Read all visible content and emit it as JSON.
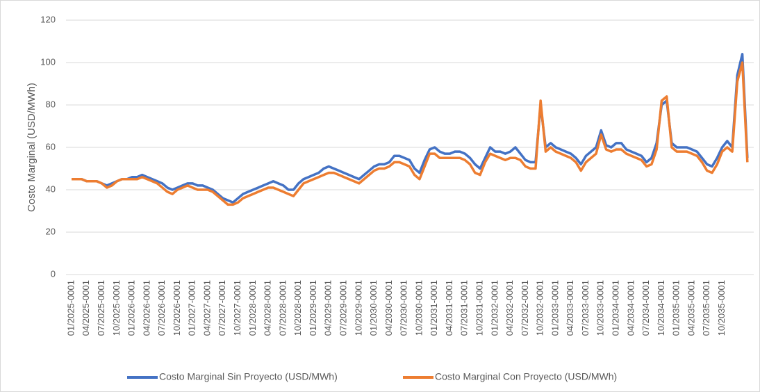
{
  "chart_data": {
    "type": "line",
    "y_label": "Costo Marginal (USD/MWh)",
    "categories": [
      "01/2025-0001",
      null,
      null,
      "04/2025-0001",
      null,
      null,
      "07/2025-0001",
      null,
      null,
      "10/2025-0001",
      null,
      null,
      "01/2026-0001",
      null,
      null,
      "04/2026-0001",
      null,
      null,
      "07/2026-0001",
      null,
      null,
      "10/2026-0001",
      null,
      null,
      "01/2027-0001",
      null,
      null,
      "04/2027-0001",
      null,
      null,
      "07/2027-0001",
      null,
      null,
      "10/2027-0001",
      null,
      null,
      "01/2028-0001",
      null,
      null,
      "04/2028-0001",
      null,
      null,
      "07/2028-0001",
      null,
      null,
      "10/2028-0001",
      null,
      null,
      "01/2029-0001",
      null,
      null,
      "04/2029-0001",
      null,
      null,
      "07/2029-0001",
      null,
      null,
      "10/2029-0001",
      null,
      null,
      "01/2030-0001",
      null,
      null,
      "04/2030-0001",
      null,
      null,
      "07/2030-0001",
      null,
      null,
      "10/2030-0001",
      null,
      null,
      "01/2031-0001",
      null,
      null,
      "04/2031-0001",
      null,
      null,
      "07/2031-0001",
      null,
      null,
      "10/2031-0001",
      null,
      null,
      "01/2032-0001",
      null,
      null,
      "04/2032-0001",
      null,
      null,
      "07/2032-0001",
      null,
      null,
      "10/2032-0001",
      null,
      null,
      "01/2033-0001",
      null,
      null,
      "04/2033-0001",
      null,
      null,
      "07/2033-0001",
      null,
      null,
      "10/2033-0001",
      null,
      null,
      "01/2034-0001",
      null,
      null,
      "04/2034-0001",
      null,
      null,
      "07/2034-0001",
      null,
      null,
      "10/2034-0001",
      null,
      null,
      "01/2035-0001",
      null,
      null,
      "04/2035-0001",
      null,
      null,
      "07/2035-0001",
      null,
      null,
      "10/2035-0001",
      null,
      null,
      null,
      null,
      null
    ],
    "series": [
      {
        "name": "Costo Marginal Sin Proyecto (USD/MWh)",
        "color": "#4472c4",
        "values": [
          45,
          45,
          45,
          44,
          44,
          44,
          43,
          42,
          43,
          44,
          45,
          45,
          46,
          46,
          47,
          46,
          45,
          44,
          43,
          41,
          40,
          41,
          42,
          43,
          43,
          42,
          42,
          41,
          40,
          38,
          36,
          35,
          34,
          36,
          38,
          39,
          40,
          41,
          42,
          43,
          44,
          43,
          42,
          40,
          40,
          43,
          45,
          46,
          47,
          48,
          50,
          51,
          50,
          49,
          48,
          47,
          46,
          45,
          47,
          49,
          51,
          52,
          52,
          53,
          56,
          56,
          55,
          54,
          50,
          48,
          54,
          59,
          60,
          58,
          57,
          57,
          58,
          58,
          57,
          55,
          52,
          50,
          55,
          60,
          58,
          58,
          57,
          58,
          60,
          57,
          54,
          53,
          53,
          80,
          60,
          62,
          60,
          59,
          58,
          57,
          55,
          52,
          56,
          58,
          60,
          68,
          61,
          60,
          62,
          62,
          59,
          58,
          57,
          56,
          53,
          55,
          62,
          80,
          82,
          62,
          60,
          60,
          60,
          59,
          58,
          55,
          52,
          51,
          55,
          60,
          63,
          60,
          94,
          104,
          55
        ]
      },
      {
        "name": "Costo Marginal Con Proyecto (USD/MWh)",
        "color": "#ed7d31",
        "values": [
          45,
          45,
          45,
          44,
          44,
          44,
          43,
          41,
          42,
          44,
          45,
          45,
          45,
          45,
          46,
          45,
          44,
          43,
          41,
          39,
          38,
          40,
          41,
          42,
          41,
          40,
          40,
          40,
          39,
          37,
          35,
          33,
          33,
          34,
          36,
          37,
          38,
          39,
          40,
          41,
          41,
          40,
          39,
          38,
          37,
          40,
          43,
          44,
          45,
          46,
          47,
          48,
          48,
          47,
          46,
          45,
          44,
          43,
          45,
          47,
          49,
          50,
          50,
          51,
          53,
          53,
          52,
          51,
          47,
          45,
          51,
          57,
          57,
          55,
          55,
          55,
          55,
          55,
          54,
          52,
          48,
          47,
          53,
          57,
          56,
          55,
          54,
          55,
          55,
          54,
          51,
          50,
          50,
          82,
          58,
          60,
          58,
          57,
          56,
          55,
          53,
          49,
          53,
          55,
          57,
          66,
          59,
          58,
          59,
          59,
          57,
          56,
          55,
          54,
          51,
          52,
          59,
          82,
          84,
          60,
          58,
          58,
          58,
          57,
          56,
          53,
          49,
          48,
          52,
          58,
          60,
          58,
          91,
          100,
          53
        ]
      }
    ],
    "ylim": [
      0,
      120
    ],
    "yticks": [
      0,
      20,
      40,
      60,
      80,
      100,
      120
    ],
    "grid": true,
    "legend": "bottom"
  }
}
